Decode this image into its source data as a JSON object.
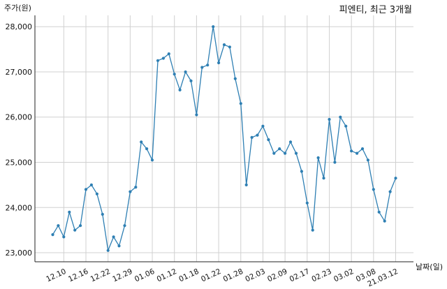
{
  "chart_data": {
    "type": "line",
    "title": "피엔티, 최근 3개월",
    "ylabel": "주가(원)",
    "xlabel": "날짜(일)",
    "ylim": [
      22800,
      28250
    ],
    "yticks": [
      23000,
      24000,
      25000,
      26000,
      27000,
      28000
    ],
    "ytick_labels": [
      "23,000",
      "24,000",
      "25,000",
      "26,000",
      "27,000",
      "28,000"
    ],
    "xtick_labels": [
      "12.10",
      "12.16",
      "12.22",
      "12.29",
      "01.06",
      "01.12",
      "01.18",
      "01.22",
      "01.28",
      "02.03",
      "02.09",
      "02.17",
      "02.23",
      "03.02",
      "03.08",
      "21.03.12"
    ],
    "xtick_indices": [
      2,
      6,
      10,
      14,
      18,
      22,
      26,
      30,
      34,
      38,
      42,
      46,
      50,
      54,
      58,
      62
    ],
    "grid": true,
    "color": "#2e7fb3",
    "series": [
      {
        "values": [
          23400,
          23600,
          23350,
          23900,
          23500,
          23600,
          24400,
          24500,
          24300,
          23850,
          23050,
          23350,
          23150,
          23600,
          24350,
          24450,
          25450,
          25300,
          25050,
          27250,
          27300,
          27400,
          26950,
          26600,
          27000,
          26800,
          26050,
          27100,
          27150,
          28000,
          27200,
          27600,
          27550,
          26850,
          26300,
          24500,
          25550,
          25600,
          25800,
          25500,
          25200,
          25300,
          25200,
          25450,
          25200,
          24800,
          24100,
          23500,
          25100,
          24650,
          25950,
          25000,
          26000,
          25800,
          25250,
          25200,
          25300,
          25050,
          24400,
          23900,
          23700,
          24350,
          24650
        ]
      }
    ]
  }
}
